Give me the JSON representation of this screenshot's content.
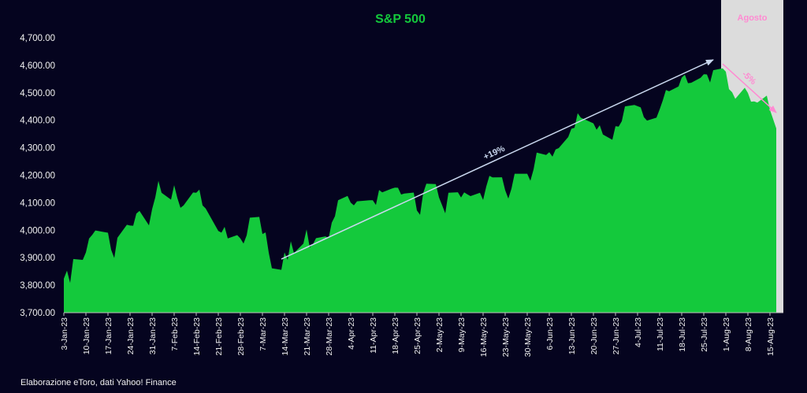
{
  "chart_data": {
    "type": "area",
    "title": "S&P 500",
    "source": "Elaborazione eToro, dati Yahoo! Finance",
    "ylim": [
      3700,
      4700
    ],
    "y_ticks": [
      "3,700.00",
      "3,800.00",
      "3,900.00",
      "4,000.00",
      "4,100.00",
      "4,200.00",
      "4,300.00",
      "4,400.00",
      "4,500.00",
      "4,600.00",
      "4,700.00"
    ],
    "x_ticks": [
      "3-Jan-23",
      "10-Jan-23",
      "17-Jan-23",
      "24-Jan-23",
      "31-Jan-23",
      "7-Feb-23",
      "14-Feb-23",
      "21-Feb-23",
      "28-Feb-23",
      "7-Mar-23",
      "14-Mar-23",
      "21-Mar-23",
      "28-Mar-23",
      "4-Apr-23",
      "11-Apr-23",
      "18-Apr-23",
      "25-Apr-23",
      "2-May-23",
      "9-May-23",
      "16-May-23",
      "23-May-23",
      "30-May-23",
      "6-Jun-23",
      "13-Jun-23",
      "20-Jun-23",
      "27-Jun-23",
      "4-Jul-23",
      "11-Jul-23",
      "18-Jul-23",
      "25-Jul-23",
      "1-Aug-23",
      "8-Aug-23",
      "15-Aug-23"
    ],
    "x": [
      "2023-01-03",
      "2023-01-04",
      "2023-01-05",
      "2023-01-06",
      "2023-01-09",
      "2023-01-10",
      "2023-01-11",
      "2023-01-12",
      "2023-01-13",
      "2023-01-17",
      "2023-01-18",
      "2023-01-19",
      "2023-01-20",
      "2023-01-23",
      "2023-01-24",
      "2023-01-25",
      "2023-01-26",
      "2023-01-27",
      "2023-01-30",
      "2023-01-31",
      "2023-02-01",
      "2023-02-02",
      "2023-02-03",
      "2023-02-06",
      "2023-02-07",
      "2023-02-08",
      "2023-02-09",
      "2023-02-10",
      "2023-02-13",
      "2023-02-14",
      "2023-02-15",
      "2023-02-16",
      "2023-02-17",
      "2023-02-21",
      "2023-02-22",
      "2023-02-23",
      "2023-02-24",
      "2023-02-27",
      "2023-02-28",
      "2023-03-01",
      "2023-03-02",
      "2023-03-03",
      "2023-03-06",
      "2023-03-07",
      "2023-03-08",
      "2023-03-09",
      "2023-03-10",
      "2023-03-13",
      "2023-03-14",
      "2023-03-15",
      "2023-03-16",
      "2023-03-17",
      "2023-03-20",
      "2023-03-21",
      "2023-03-22",
      "2023-03-23",
      "2023-03-24",
      "2023-03-27",
      "2023-03-28",
      "2023-03-29",
      "2023-03-30",
      "2023-03-31",
      "2023-04-03",
      "2023-04-04",
      "2023-04-05",
      "2023-04-06",
      "2023-04-10",
      "2023-04-11",
      "2023-04-12",
      "2023-04-13",
      "2023-04-14",
      "2023-04-17",
      "2023-04-18",
      "2023-04-19",
      "2023-04-20",
      "2023-04-21",
      "2023-04-24",
      "2023-04-25",
      "2023-04-26",
      "2023-04-27",
      "2023-04-28",
      "2023-05-01",
      "2023-05-02",
      "2023-05-03",
      "2023-05-04",
      "2023-05-05",
      "2023-05-08",
      "2023-05-09",
      "2023-05-10",
      "2023-05-11",
      "2023-05-12",
      "2023-05-15",
      "2023-05-16",
      "2023-05-17",
      "2023-05-18",
      "2023-05-19",
      "2023-05-22",
      "2023-05-23",
      "2023-05-24",
      "2023-05-25",
      "2023-05-26",
      "2023-05-30",
      "2023-05-31",
      "2023-06-01",
      "2023-06-02",
      "2023-06-05",
      "2023-06-06",
      "2023-06-07",
      "2023-06-08",
      "2023-06-09",
      "2023-06-12",
      "2023-06-13",
      "2023-06-14",
      "2023-06-15",
      "2023-06-16",
      "2023-06-20",
      "2023-06-21",
      "2023-06-22",
      "2023-06-23",
      "2023-06-26",
      "2023-06-27",
      "2023-06-28",
      "2023-06-29",
      "2023-06-30",
      "2023-07-03",
      "2023-07-05",
      "2023-07-06",
      "2023-07-07",
      "2023-07-10",
      "2023-07-11",
      "2023-07-12",
      "2023-07-13",
      "2023-07-14",
      "2023-07-17",
      "2023-07-18",
      "2023-07-19",
      "2023-07-20",
      "2023-07-21",
      "2023-07-24",
      "2023-07-25",
      "2023-07-26",
      "2023-07-27",
      "2023-07-28",
      "2023-07-31",
      "2023-08-01",
      "2023-08-02",
      "2023-08-03",
      "2023-08-04",
      "2023-08-07",
      "2023-08-08",
      "2023-08-09",
      "2023-08-10",
      "2023-08-11",
      "2023-08-14",
      "2023-08-15",
      "2023-08-16",
      "2023-08-17"
    ],
    "series": [
      {
        "values": [
          3824.14,
          3852.97,
          3808.1,
          3895.08,
          3892.09,
          3919.25,
          3969.61,
          3983.17,
          3999.09,
          3990.97,
          3928.86,
          3898.85,
          3972.61,
          4019.81,
          4016.95,
          4016.22,
          4060.43,
          4070.56,
          4017.77,
          4076.6,
          4119.21,
          4179.76,
          4136.48,
          4111.08,
          4164.0,
          4117.86,
          4081.5,
          4090.46,
          4137.29,
          4136.13,
          4147.6,
          4090.41,
          4079.09,
          3997.34,
          3991.05,
          4012.32,
          3970.04,
          3982.24,
          3970.15,
          3951.39,
          3981.35,
          4045.64,
          4048.42,
          3986.37,
          3992.01,
          3918.32,
          3861.59,
          3855.76,
          3919.29,
          3891.93,
          3960.28,
          3916.64,
          3951.57,
          4002.87,
          3936.97,
          3948.72,
          3970.99,
          3977.53,
          3971.27,
          4027.81,
          4050.83,
          4109.31,
          4124.51,
          4100.6,
          4090.38,
          4105.02,
          4109.11,
          4108.94,
          4091.95,
          4146.22,
          4137.64,
          4151.32,
          4154.87,
          4154.52,
          4129.79,
          4133.52,
          4137.04,
          4071.63,
          4055.99,
          4135.35,
          4169.48,
          4167.87,
          4119.58,
          4090.75,
          4061.22,
          4136.25,
          4138.12,
          4119.17,
          4137.64,
          4130.62,
          4124.08,
          4136.28,
          4109.9,
          4158.77,
          4198.05,
          4191.98,
          4192.63,
          4145.58,
          4115.24,
          4151.28,
          4205.45,
          4205.52,
          4179.83,
          4221.02,
          4282.37,
          4273.79,
          4283.85,
          4267.52,
          4293.93,
          4298.86,
          4338.93,
          4369.01,
          4372.59,
          4425.84,
          4409.59,
          4388.71,
          4365.69,
          4381.89,
          4348.33,
          4328.82,
          4378.41,
          4376.86,
          4396.44,
          4450.38,
          4455.59,
          4446.82,
          4411.59,
          4398.95,
          4409.53,
          4439.26,
          4472.16,
          4510.04,
          4505.42,
          4522.79,
          4554.98,
          4565.72,
          4534.87,
          4536.34,
          4554.64,
          4567.46,
          4566.75,
          4537.41,
          4582.23,
          4588.96,
          4576.73,
          4513.39,
          4501.89,
          4478.03,
          4518.44,
          4499.38,
          4467.71,
          4468.83,
          4464.05,
          4489.72,
          4437.86,
          4404.33,
          4370.36
        ]
      }
    ],
    "background_band": {
      "label": "Agosto",
      "from": "2023-07-31",
      "color": "#dcdcdc"
    },
    "annotations": [
      {
        "label": "+19%",
        "from": [
          "2023-03-13",
          3895
        ],
        "to": [
          "2023-07-28",
          4620
        ],
        "color": "#c9d7ee"
      },
      {
        "label": "-5%",
        "from": [
          "2023-07-31",
          4605
        ],
        "to": [
          "2023-08-17",
          4428
        ],
        "color": "#ff8ad2"
      }
    ],
    "colors": {
      "background": "#05041f",
      "area": "#14c93c",
      "title": "#14c93c",
      "text": "#f2f2f2"
    },
    "grid": false
  }
}
